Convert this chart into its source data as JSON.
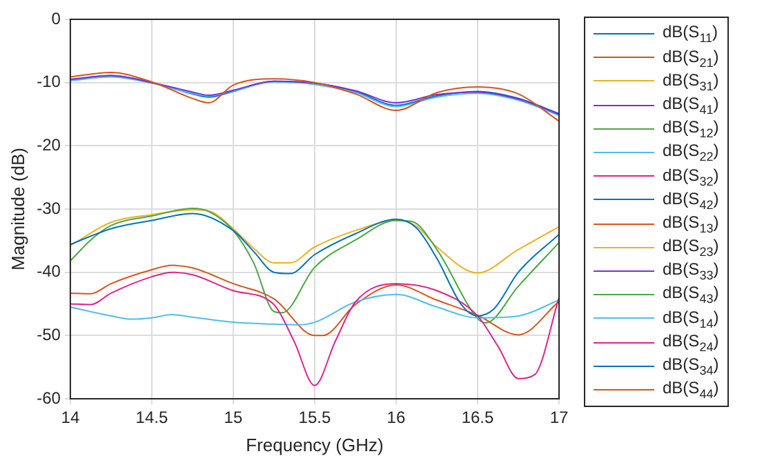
{
  "chart_data": {
    "type": "line",
    "xlabel": "Frequency (GHz)",
    "ylabel": "Magnitude (dB)",
    "xlim": [
      14,
      17
    ],
    "ylim": [
      -60,
      0
    ],
    "xticks": [
      14,
      14.5,
      15,
      15.5,
      16,
      16.5,
      17
    ],
    "yticks": [
      -60,
      -50,
      -40,
      -30,
      -20,
      -10,
      0
    ],
    "grid": true,
    "legend": "right",
    "marker": "none",
    "line_style": "solid",
    "series": [
      {
        "name": "dB(S$_{11}$)",
        "color": "#0072bd",
        "x": [
          14,
          14.25,
          14.5,
          14.75,
          14.85,
          15,
          15.25,
          15.5,
          15.75,
          16,
          16.25,
          16.5,
          16.75,
          17
        ],
        "values": [
          -9.6,
          -8.9,
          -10,
          -11.8,
          -12.3,
          -11.4,
          -9.8,
          -10.1,
          -11.4,
          -13.6,
          -12.1,
          -11.4,
          -12.5,
          -14.9
        ]
      },
      {
        "name": "dB(S$_{21}$)",
        "color": "#d95319"
      },
      {
        "name": "dB(S$_{31}$)",
        "color": "#edb120"
      },
      {
        "name": "dB(S$_{41}$)",
        "color": "#7b2fd6"
      },
      {
        "name": "dB(S$_{12}$)",
        "color": "#4aa640"
      },
      {
        "name": "dB(S$_{22}$)",
        "color": "#4dbeee",
        "x": [
          14,
          14.25,
          14.5,
          14.75,
          14.85,
          15,
          15.25,
          15.5,
          15.75,
          16,
          16.25,
          16.5,
          16.75,
          17
        ],
        "values": [
          -9.7,
          -9.1,
          -10.1,
          -11.7,
          -12.1,
          -11.3,
          -9.9,
          -10.3,
          -11.6,
          -13.8,
          -12.3,
          -11.7,
          -12.8,
          -15.2
        ]
      },
      {
        "name": "dB(S$_{32}$)",
        "color": "#e0228c"
      },
      {
        "name": "dB(S$_{42}$)",
        "color": "#0072bd"
      },
      {
        "name": "dB(S$_{13}$)",
        "color": "#d95319",
        "x": [
          14,
          14.125,
          14.25,
          14.5,
          14.625,
          14.75,
          15,
          15.25,
          15.5,
          15.55,
          15.75,
          16,
          16.25,
          16.5,
          16.75,
          17
        ],
        "values": [
          -43.3,
          -43.4,
          -41.8,
          -39.6,
          -38.9,
          -39.3,
          -41.8,
          -44.2,
          -50,
          -50,
          -45.1,
          -42,
          -44.4,
          -46.8,
          -49.9,
          -44.6
        ]
      },
      {
        "name": "dB(S$_{23}$)",
        "color": "#edb120",
        "x": [
          14,
          14.25,
          14.5,
          14.75,
          14.85,
          15,
          15.125,
          15.25,
          15.35,
          15.5,
          15.75,
          16,
          16.125,
          16.25,
          16.5,
          16.75,
          17
        ],
        "values": [
          -35.8,
          -32.1,
          -30.9,
          -30.1,
          -30.3,
          -33.1,
          -36.2,
          -38.5,
          -38.5,
          -36,
          -33.4,
          -31.8,
          -32.7,
          -36,
          -40.1,
          -36.4,
          -32.8
        ]
      },
      {
        "name": "dB(S$_{33}$)",
        "color": "#7b2fd6",
        "x": [
          14,
          14.25,
          14.5,
          14.75,
          14.85,
          15,
          15.25,
          15.5,
          15.75,
          16,
          16.25,
          16.5,
          16.75,
          17
        ],
        "values": [
          -9.5,
          -8.9,
          -10,
          -11.5,
          -12,
          -11.2,
          -9.8,
          -10.1,
          -11.3,
          -13.2,
          -11.9,
          -11.5,
          -12.6,
          -15
        ]
      },
      {
        "name": "dB(S$_{43}$)",
        "color": "#4aa640",
        "x": [
          14,
          14.125,
          14.25,
          14.5,
          14.75,
          14.85,
          15,
          15.125,
          15.25,
          15.3,
          15.5,
          15.75,
          16,
          16.1,
          16.25,
          16.5,
          16.55,
          16.75,
          17
        ],
        "values": [
          -38.2,
          -34.9,
          -32.6,
          -31.1,
          -29.9,
          -30.4,
          -33.4,
          -38.5,
          -46.2,
          -46.4,
          -39.2,
          -34.9,
          -31.8,
          -32,
          -36.4,
          -47.3,
          -48,
          -42.2,
          -35.3
        ]
      },
      {
        "name": "dB(S$_{14}$)",
        "color": "#4dbeee",
        "x": [
          14,
          14.25,
          14.375,
          14.5,
          14.625,
          14.75,
          15,
          15.25,
          15.4,
          15.5,
          15.75,
          16,
          16.25,
          16.5,
          16.75,
          17
        ],
        "values": [
          -45.5,
          -46.9,
          -47.4,
          -47.2,
          -46.7,
          -47.1,
          -47.9,
          -48.2,
          -48.3,
          -47.9,
          -44.7,
          -43.5,
          -45.5,
          -47.2,
          -46.9,
          -44.4
        ]
      },
      {
        "name": "dB(S$_{24}$)",
        "color": "#e0228c",
        "x": [
          14,
          14.125,
          14.25,
          14.5,
          14.625,
          14.75,
          15,
          15.25,
          15.375,
          15.5,
          15.625,
          15.75,
          16,
          16.25,
          16.5,
          16.625,
          16.75,
          16.85,
          17
        ],
        "values": [
          -45,
          -45.1,
          -43.3,
          -40.7,
          -40,
          -40.4,
          -42.9,
          -45.1,
          -51,
          -57.9,
          -51,
          -44.7,
          -41.8,
          -42.9,
          -46.9,
          -51.7,
          -56.8,
          -56.2,
          -44
        ]
      },
      {
        "name": "dB(S$_{34}$)",
        "color": "#0072bd",
        "x": [
          14,
          14.25,
          14.5,
          14.75,
          15,
          15.125,
          15.25,
          15.35,
          15.5,
          15.75,
          16,
          16.125,
          16.25,
          16.4,
          16.5,
          16.6,
          16.75,
          17
        ],
        "values": [
          -35.6,
          -33.1,
          -31.8,
          -30.7,
          -33.4,
          -36.7,
          -40,
          -40.2,
          -37.2,
          -33.9,
          -31.6,
          -33,
          -37.8,
          -45.1,
          -46.9,
          -45.8,
          -40,
          -34
        ]
      },
      {
        "name": "dB(S$_{44}$)",
        "color": "#d95319",
        "x": [
          14,
          14.25,
          14.5,
          14.75,
          14.85,
          15,
          15.25,
          15.5,
          15.75,
          16,
          16.25,
          16.5,
          16.75,
          17
        ],
        "values": [
          -9.1,
          -8.4,
          -9.9,
          -12.5,
          -13.2,
          -10.4,
          -9.4,
          -10,
          -11.8,
          -14.4,
          -11.6,
          -10.7,
          -11.8,
          -16.1
        ]
      }
    ]
  }
}
